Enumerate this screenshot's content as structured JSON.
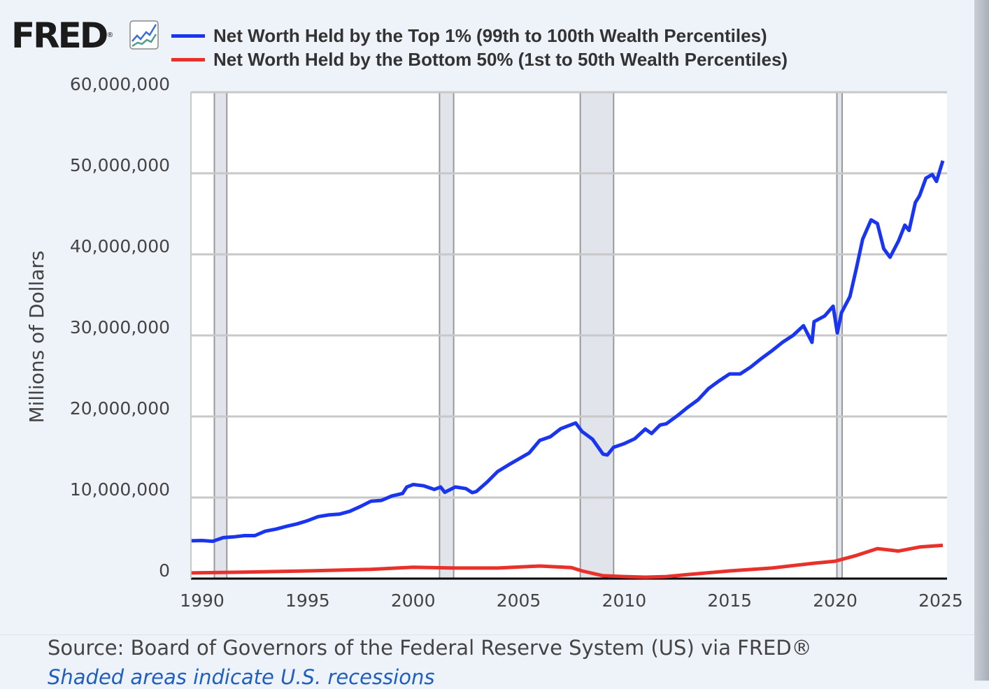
{
  "logo": {
    "text": "FRED",
    "registered": "®"
  },
  "source": "Source: Board of Governors of the Federal Reserve System (US) via FRED®",
  "note": "Shaded areas indicate U.S. recessions",
  "chart_data": {
    "type": "line",
    "title": "",
    "xlabel": "",
    "ylabel": "Millions of Dollars",
    "xlim": [
      1989.5,
      2025.25
    ],
    "ylim": [
      0,
      60000000
    ],
    "grid": true,
    "legend_position": "top",
    "x_ticks": [
      "1990",
      "1995",
      "2000",
      "2005",
      "2010",
      "2015",
      "2020",
      "2025"
    ],
    "y_ticks": [
      "0",
      "10,000,000",
      "20,000,000",
      "30,000,000",
      "40,000,000",
      "50,000,000",
      "60,000,000"
    ],
    "recessions": [
      [
        1990.58,
        1991.17
      ],
      [
        2001.25,
        2001.92
      ],
      [
        2007.92,
        2009.5
      ],
      [
        2020.08,
        2020.33
      ]
    ],
    "series": [
      {
        "name": "Net Worth Held by the Top 1% (99th to 100th Wealth Percentiles)",
        "color": "#1a35f0",
        "points": [
          [
            1989.5,
            4660000
          ],
          [
            1990,
            4700000
          ],
          [
            1990.5,
            4600000
          ],
          [
            1991,
            5050000
          ],
          [
            1991.5,
            5150000
          ],
          [
            1992,
            5300000
          ],
          [
            1992.5,
            5300000
          ],
          [
            1993,
            5850000
          ],
          [
            1993.5,
            6100000
          ],
          [
            1994,
            6450000
          ],
          [
            1994.5,
            6750000
          ],
          [
            1995,
            7150000
          ],
          [
            1995.5,
            7650000
          ],
          [
            1996,
            7850000
          ],
          [
            1996.5,
            7950000
          ],
          [
            1997,
            8300000
          ],
          [
            1997.5,
            8900000
          ],
          [
            1998,
            9550000
          ],
          [
            1998.5,
            9650000
          ],
          [
            1999,
            10200000
          ],
          [
            1999.5,
            10500000
          ],
          [
            1999.7,
            11300000
          ],
          [
            2000,
            11600000
          ],
          [
            2000.5,
            11450000
          ],
          [
            2001,
            11000000
          ],
          [
            2001.3,
            11300000
          ],
          [
            2001.5,
            10650000
          ],
          [
            2002,
            11300000
          ],
          [
            2002.5,
            11100000
          ],
          [
            2002.8,
            10600000
          ],
          [
            2003,
            10750000
          ],
          [
            2003.5,
            11900000
          ],
          [
            2004,
            13200000
          ],
          [
            2004.5,
            14000000
          ],
          [
            2005,
            14750000
          ],
          [
            2005.5,
            15500000
          ],
          [
            2006,
            17050000
          ],
          [
            2006.5,
            17500000
          ],
          [
            2007,
            18500000
          ],
          [
            2007.7,
            19200000
          ],
          [
            2008,
            18150000
          ],
          [
            2008.5,
            17200000
          ],
          [
            2009,
            15350000
          ],
          [
            2009.2,
            15250000
          ],
          [
            2009.5,
            16200000
          ],
          [
            2010,
            16650000
          ],
          [
            2010.5,
            17250000
          ],
          [
            2011,
            18450000
          ],
          [
            2011.3,
            17900000
          ],
          [
            2011.7,
            18950000
          ],
          [
            2012,
            19100000
          ],
          [
            2012.5,
            20050000
          ],
          [
            2013,
            21100000
          ],
          [
            2013.5,
            22050000
          ],
          [
            2014,
            23450000
          ],
          [
            2014.5,
            24400000
          ],
          [
            2015,
            25250000
          ],
          [
            2015.5,
            25250000
          ],
          [
            2016,
            26100000
          ],
          [
            2016.5,
            27150000
          ],
          [
            2017,
            28100000
          ],
          [
            2017.5,
            29150000
          ],
          [
            2018,
            30000000
          ],
          [
            2018.5,
            31200000
          ],
          [
            2018.9,
            29150000
          ],
          [
            2019,
            31700000
          ],
          [
            2019.5,
            32400000
          ],
          [
            2019.9,
            33600000
          ],
          [
            2020.1,
            30300000
          ],
          [
            2020.3,
            32800000
          ],
          [
            2020.7,
            34800000
          ],
          [
            2021,
            38250000
          ],
          [
            2021.3,
            41850000
          ],
          [
            2021.7,
            44250000
          ],
          [
            2022,
            43800000
          ],
          [
            2022.3,
            40700000
          ],
          [
            2022.6,
            39650000
          ],
          [
            2023,
            41650000
          ],
          [
            2023.3,
            43600000
          ],
          [
            2023.5,
            42950000
          ],
          [
            2023.8,
            46400000
          ],
          [
            2024,
            47250000
          ],
          [
            2024.3,
            49400000
          ],
          [
            2024.6,
            49850000
          ],
          [
            2024.8,
            49000000
          ],
          [
            2025.1,
            51550000
          ]
        ]
      },
      {
        "name": "Net Worth Held by the Bottom 50% (1st to 50th Wealth Percentiles)",
        "color": "#e8312a",
        "points": [
          [
            1989.5,
            700000
          ],
          [
            1992,
            800000
          ],
          [
            1995,
            950000
          ],
          [
            1998,
            1150000
          ],
          [
            2000,
            1400000
          ],
          [
            2002,
            1300000
          ],
          [
            2004,
            1300000
          ],
          [
            2006,
            1550000
          ],
          [
            2007.5,
            1350000
          ],
          [
            2008,
            950000
          ],
          [
            2009,
            350000
          ],
          [
            2010,
            250000
          ],
          [
            2011,
            170000
          ],
          [
            2012,
            250000
          ],
          [
            2013,
            500000
          ],
          [
            2015,
            950000
          ],
          [
            2017,
            1300000
          ],
          [
            2019,
            1900000
          ],
          [
            2020,
            2150000
          ],
          [
            2021,
            2850000
          ],
          [
            2022,
            3700000
          ],
          [
            2023,
            3400000
          ],
          [
            2024,
            3900000
          ],
          [
            2025.1,
            4100000
          ]
        ]
      }
    ]
  }
}
